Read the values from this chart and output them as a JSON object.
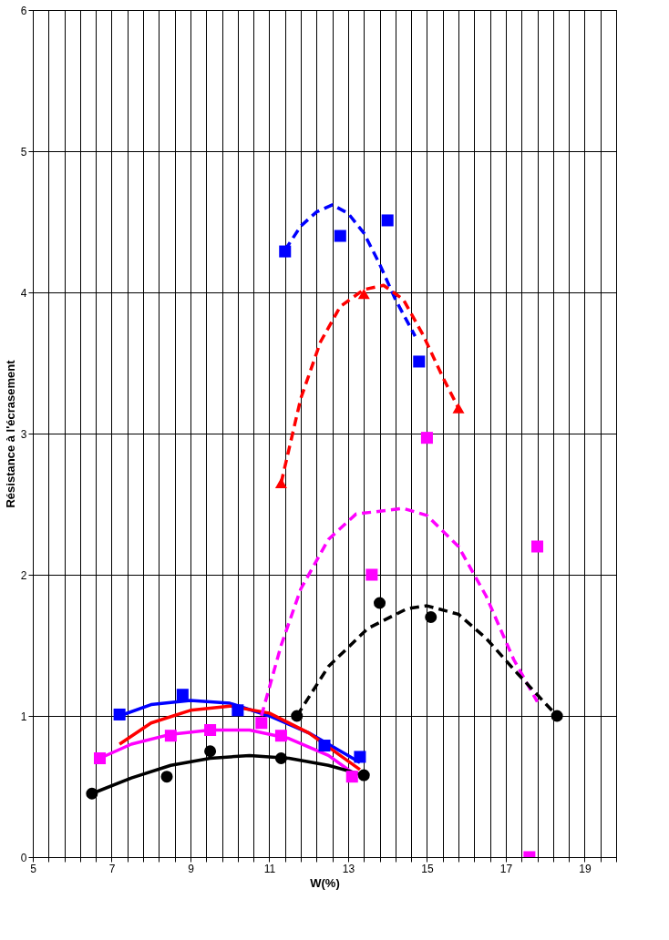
{
  "chart_data": {
    "type": "scatter",
    "xlabel": "W(%)",
    "ylabel": "Résistance à l'écrasement",
    "xlim": [
      5,
      19.8
    ],
    "ylim": [
      0,
      6
    ],
    "xticks": [
      5,
      {
        "value": 5.4,
        "label": null
      },
      {
        "value": 5.8,
        "label": null
      },
      {
        "value": 6.2,
        "label": null
      },
      {
        "value": 6.6,
        "label": null
      },
      7,
      {
        "value": 7.4,
        "label": null
      },
      {
        "value": 7.8,
        "label": null
      },
      {
        "value": 8.2,
        "label": null
      },
      {
        "value": 8.6,
        "label": null
      },
      9,
      {
        "value": 9.4,
        "label": null
      },
      {
        "value": 9.8,
        "label": null
      },
      {
        "value": 10.2,
        "label": null
      },
      {
        "value": 10.6,
        "label": null
      },
      11,
      {
        "value": 11.4,
        "label": null
      },
      {
        "value": 11.8,
        "label": null
      },
      {
        "value": 12.2,
        "label": null
      },
      {
        "value": 12.6,
        "label": null
      },
      13,
      {
        "value": 13.4,
        "label": null
      },
      {
        "value": 13.8,
        "label": null
      },
      {
        "value": 14.2,
        "label": null
      },
      {
        "value": 14.6,
        "label": null
      },
      15,
      {
        "value": 15.4,
        "label": null
      },
      {
        "value": 15.8,
        "label": null
      },
      {
        "value": 16.2,
        "label": null
      },
      {
        "value": 16.6,
        "label": null
      },
      17,
      {
        "value": 17.4,
        "label": null
      },
      {
        "value": 17.8,
        "label": null
      },
      {
        "value": 18.2,
        "label": null
      },
      {
        "value": 18.6,
        "label": null
      },
      19,
      {
        "value": 19.4,
        "label": null
      },
      {
        "value": 19.8,
        "label": null
      }
    ],
    "yticks": [
      0,
      1,
      2,
      3,
      4,
      5,
      6
    ],
    "grid": true,
    "series": [
      {
        "type": "line",
        "color": "#0000ff",
        "line_style": "solid",
        "x": [
          7.2,
          8,
          9,
          10,
          11,
          12,
          13,
          13.3
        ],
        "values": [
          1.0,
          1.08,
          1.11,
          1.09,
          1.0,
          0.88,
          0.72,
          0.67
        ]
      },
      {
        "type": "line",
        "color": "#ff0000",
        "line_style": "solid",
        "x": [
          7.2,
          8,
          9,
          10,
          11,
          12,
          13,
          13.3
        ],
        "values": [
          0.8,
          0.95,
          1.04,
          1.07,
          1.02,
          0.88,
          0.68,
          0.62
        ]
      },
      {
        "type": "line",
        "color": "#ff00ff",
        "line_style": "solid",
        "x": [
          6.7,
          7.5,
          8.5,
          9.5,
          10.5,
          11.5,
          12.5,
          13.1
        ],
        "values": [
          0.7,
          0.8,
          0.87,
          0.9,
          0.9,
          0.84,
          0.72,
          0.6
        ]
      },
      {
        "type": "line",
        "color": "#000000",
        "line_style": "solid",
        "x": [
          6.5,
          7.5,
          8.5,
          9.5,
          10.5,
          11.5,
          12.5,
          13.4
        ],
        "values": [
          0.45,
          0.56,
          0.65,
          0.7,
          0.72,
          0.7,
          0.65,
          0.58
        ]
      },
      {
        "type": "line",
        "color": "#0000ff",
        "line_style": "dashed",
        "x": [
          11.4,
          11.8,
          12.2,
          12.6,
          13,
          13.4,
          13.8,
          14.2,
          14.7
        ],
        "values": [
          4.3,
          4.47,
          4.57,
          4.62,
          4.56,
          4.42,
          4.2,
          3.95,
          3.69
        ]
      },
      {
        "type": "line",
        "color": "#ff0000",
        "line_style": "dashed",
        "x": [
          11.3,
          11.8,
          12.3,
          12.8,
          13.4,
          13.9,
          14.4,
          14.9,
          15.4,
          15.8
        ],
        "values": [
          2.65,
          3.25,
          3.65,
          3.9,
          4.02,
          4.05,
          3.95,
          3.7,
          3.4,
          3.18
        ]
      },
      {
        "type": "line",
        "color": "#ff00ff",
        "line_style": "dashed",
        "x": [
          10.8,
          11.3,
          11.8,
          12.5,
          13.2,
          14.4,
          15,
          15.8,
          16.5,
          17.2,
          17.8
        ],
        "values": [
          1.0,
          1.5,
          1.9,
          2.25,
          2.43,
          2.47,
          2.42,
          2.2,
          1.85,
          1.4,
          1.1
        ]
      },
      {
        "type": "line",
        "color": "#000000",
        "line_style": "dashed",
        "x": [
          11.7,
          12.5,
          13.5,
          14.5,
          15,
          15.8,
          16.5,
          17.3,
          17.8,
          18.3
        ],
        "values": [
          1.0,
          1.35,
          1.62,
          1.76,
          1.78,
          1.72,
          1.55,
          1.3,
          1.15,
          1.0
        ]
      },
      {
        "color": "#0000ff",
        "marker": "square",
        "x": [
          7.2,
          8.8,
          10.2,
          12.4,
          13.3
        ],
        "values": [
          1.01,
          1.15,
          1.04,
          0.79,
          0.71
        ]
      },
      {
        "color": "#0000ff",
        "marker": "square",
        "x": [
          11.4,
          12.8,
          14.0,
          14.8
        ],
        "values": [
          4.29,
          4.4,
          4.51,
          3.51
        ]
      },
      {
        "color": "#ff0000",
        "marker": "triangle",
        "x": [
          11.3,
          13.4,
          15.8
        ],
        "values": [
          2.65,
          3.99,
          3.18
        ]
      },
      {
        "color": "#ff00ff",
        "marker": "square",
        "x": [
          6.7,
          8.5,
          9.5,
          10.8,
          11.3,
          13.1
        ],
        "values": [
          0.7,
          0.86,
          0.9,
          0.95,
          0.86,
          0.57
        ]
      },
      {
        "color": "#ff00ff",
        "marker": "square",
        "x": [
          13.6,
          15.0,
          17.8,
          17.6
        ],
        "values": [
          2.0,
          2.97,
          2.2,
          0.0
        ]
      },
      {
        "color": "#000000",
        "marker": "circle",
        "x": [
          6.5,
          8.4,
          9.5,
          11.3,
          13.4
        ],
        "values": [
          0.45,
          0.57,
          0.75,
          0.7,
          0.58
        ]
      },
      {
        "color": "#000000",
        "marker": "circle",
        "x": [
          11.7,
          13.8,
          15.1,
          18.3
        ],
        "values": [
          1.0,
          1.8,
          1.7,
          1.0
        ]
      }
    ]
  }
}
